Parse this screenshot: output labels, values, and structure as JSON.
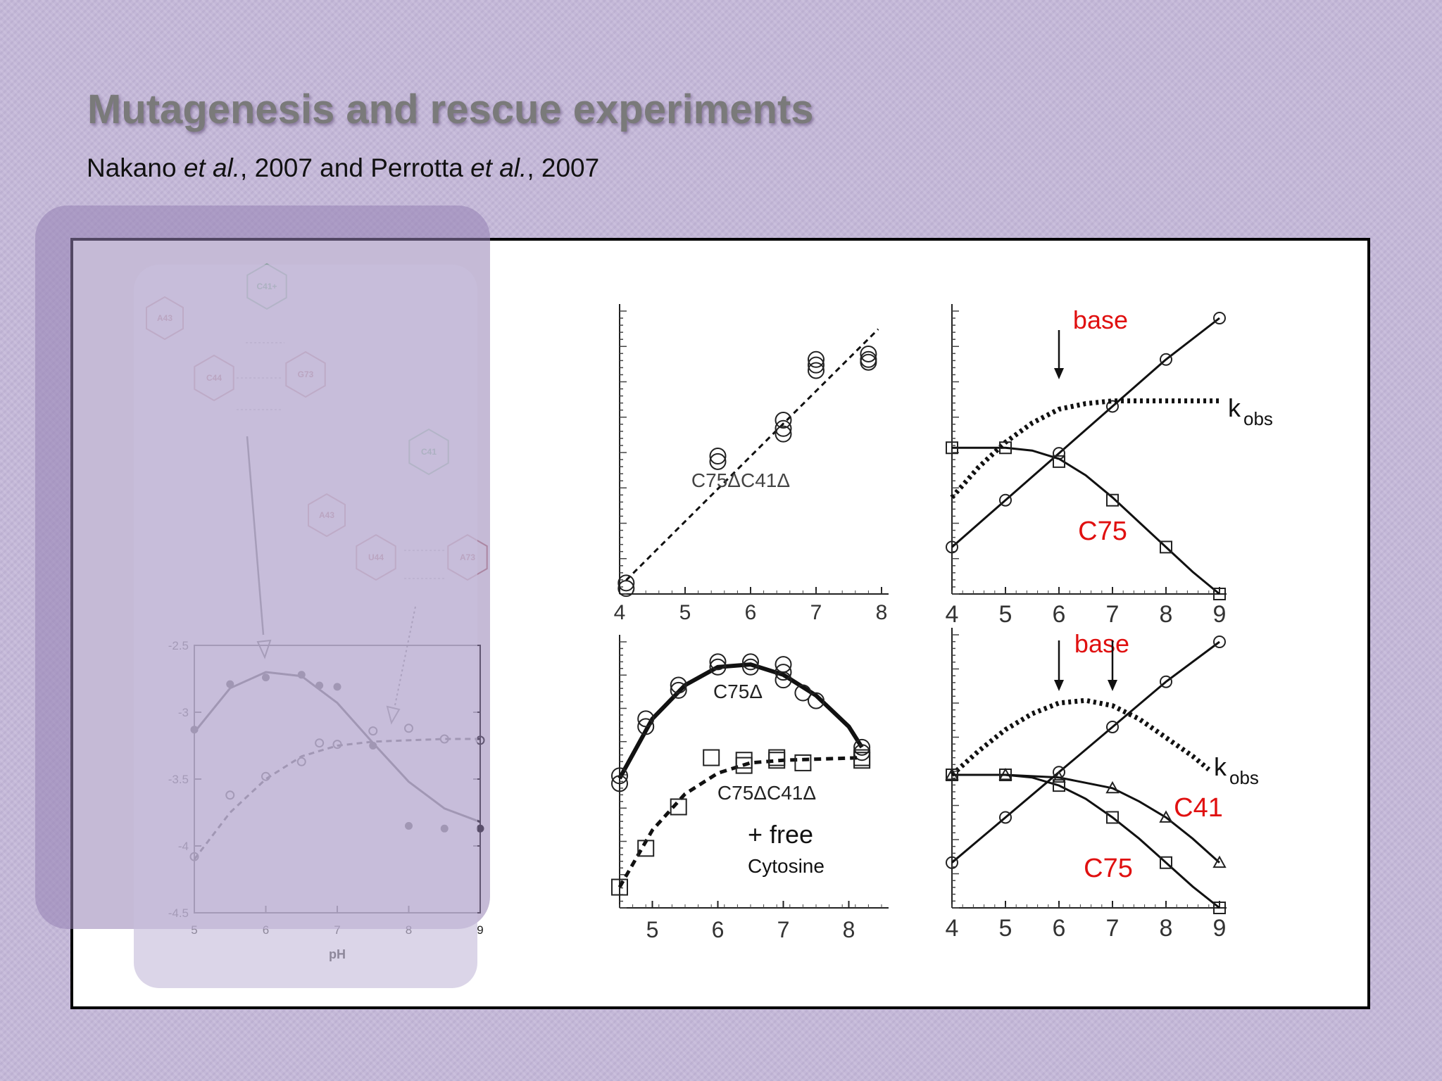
{
  "slide": {
    "title": "Mutagenesis and rescue experiments",
    "citation": {
      "author1": "Nakano",
      "etal": "et al.",
      "year1": ", 2007 and Perrotta",
      "year2": ", 2007"
    }
  },
  "structures": {
    "top": [
      "C41+",
      "A43",
      "C44",
      "G73"
    ],
    "bottom": [
      "C41",
      "A43",
      "U44",
      "A73"
    ]
  },
  "colors": {
    "red_label": "#e01010",
    "black": "#000000",
    "gray_axis": "#666666"
  },
  "chart_data": [
    {
      "id": "panel_left_ph_profile",
      "type": "scatter",
      "xlabel": "pH",
      "x_ticks": [
        "5",
        "6",
        "7",
        "8",
        "9"
      ],
      "y_ticks": [
        "-2.5",
        "-3",
        "-3.5",
        "-4",
        "-4.5"
      ],
      "xlim": [
        5,
        9
      ],
      "ylim": [
        -4.5,
        -2.5
      ],
      "series": [
        {
          "marker": "filled-circle",
          "fit": "solid",
          "points": [
            [
              5,
              -3.13
            ],
            [
              5.5,
              -2.79
            ],
            [
              6,
              -2.74
            ],
            [
              6.5,
              -2.72
            ],
            [
              6.75,
              -2.8
            ],
            [
              7,
              -2.81
            ],
            [
              7.5,
              -3.25
            ],
            [
              8,
              -3.85
            ],
            [
              8.5,
              -3.87
            ],
            [
              9,
              -3.87
            ]
          ],
          "curve": [
            [
              5,
              -3.15
            ],
            [
              5.5,
              -2.82
            ],
            [
              6,
              -2.7
            ],
            [
              6.5,
              -2.73
            ],
            [
              7,
              -2.93
            ],
            [
              7.5,
              -3.23
            ],
            [
              8,
              -3.52
            ],
            [
              8.5,
              -3.72
            ],
            [
              9,
              -3.82
            ]
          ]
        },
        {
          "marker": "open-circle",
          "fit": "dashed",
          "points": [
            [
              5,
              -4.08
            ],
            [
              5.5,
              -3.62
            ],
            [
              6,
              -3.48
            ],
            [
              6.5,
              -3.37
            ],
            [
              6.75,
              -3.23
            ],
            [
              7,
              -3.24
            ],
            [
              7.5,
              -3.14
            ],
            [
              8,
              -3.12
            ],
            [
              8.5,
              -3.2
            ],
            [
              9,
              -3.21
            ]
          ],
          "curve": [
            [
              5,
              -4.1
            ],
            [
              5.5,
              -3.75
            ],
            [
              6,
              -3.5
            ],
            [
              6.5,
              -3.33
            ],
            [
              7,
              -3.25
            ],
            [
              7.5,
              -3.22
            ],
            [
              8,
              -3.21
            ],
            [
              8.5,
              -3.2
            ],
            [
              9,
              -3.2
            ]
          ]
        }
      ]
    },
    {
      "id": "panel_top_middle",
      "type": "scatter",
      "x_ticks": [
        "4",
        "5",
        "6",
        "7",
        "8"
      ],
      "xlim": [
        4,
        8
      ],
      "ylim": [
        0,
        1
      ],
      "annotations": [
        "C75ΔC41Δ"
      ],
      "series": [
        {
          "marker": "open-circle",
          "fit": "dashed",
          "points": [
            [
              4.1,
              0.04
            ],
            [
              4.1,
              0.02
            ],
            [
              5.5,
              0.5
            ],
            [
              5.5,
              0.48
            ],
            [
              6.5,
              0.63
            ],
            [
              6.5,
              0.6
            ],
            [
              6.5,
              0.58
            ],
            [
              7,
              0.85
            ],
            [
              7,
              0.83
            ],
            [
              7,
              0.81
            ],
            [
              7.8,
              0.87
            ],
            [
              7.8,
              0.85
            ],
            [
              7.8,
              0.84
            ]
          ],
          "curve": [
            [
              4.1,
              0.05
            ],
            [
              7.95,
              0.96
            ]
          ]
        }
      ]
    },
    {
      "id": "panel_top_right",
      "type": "line",
      "x_ticks": [
        "4",
        "5",
        "6",
        "7",
        "8",
        "9"
      ],
      "xlim": [
        4,
        9
      ],
      "ylim": [
        0,
        1
      ],
      "labels": {
        "base": "base",
        "kobs_main": "k",
        "kobs_sub": "obs",
        "c75": "C75"
      },
      "arrows_at_x": [
        6
      ],
      "series": [
        {
          "name": "base",
          "marker": "open-circle",
          "fit": "solid",
          "points": [
            [
              4,
              0.17
            ],
            [
              5,
              0.34
            ],
            [
              6,
              0.51
            ],
            [
              7,
              0.68
            ],
            [
              8,
              0.85
            ],
            [
              9,
              1.0
            ]
          ]
        },
        {
          "name": "kobs",
          "marker": "none",
          "fit": "dotted-bold",
          "curve": [
            [
              4,
              0.35
            ],
            [
              4.5,
              0.46
            ],
            [
              5,
              0.55
            ],
            [
              5.5,
              0.62
            ],
            [
              6,
              0.67
            ],
            [
              6.5,
              0.69
            ],
            [
              7,
              0.7
            ],
            [
              8,
              0.7
            ],
            [
              9,
              0.7
            ]
          ]
        },
        {
          "name": "C75",
          "marker": "open-square",
          "fit": "solid",
          "points": [
            [
              4,
              0.53
            ],
            [
              5,
              0.53
            ],
            [
              6,
              0.48
            ],
            [
              7,
              0.34
            ],
            [
              8,
              0.17
            ],
            [
              9,
              0.0
            ]
          ],
          "curve": [
            [
              4,
              0.53
            ],
            [
              5,
              0.53
            ],
            [
              5.5,
              0.52
            ],
            [
              6,
              0.49
            ],
            [
              6.5,
              0.43
            ],
            [
              7,
              0.35
            ],
            [
              7.5,
              0.26
            ],
            [
              8,
              0.17
            ],
            [
              8.5,
              0.08
            ],
            [
              9,
              0.0
            ]
          ]
        }
      ]
    },
    {
      "id": "panel_bottom_middle",
      "type": "scatter",
      "x_ticks": [
        "5",
        "6",
        "7",
        "8"
      ],
      "xlim": [
        4.5,
        8.5
      ],
      "ylim": [
        0,
        1
      ],
      "labels": {
        "c75d": "C75Δ",
        "c75dc41d": "C75ΔC41Δ",
        "free": "+ free",
        "cytosine": "Cytosine"
      },
      "series": [
        {
          "marker": "open-circle",
          "fit": "solid-bold",
          "points": [
            [
              4.5,
              0.51
            ],
            [
              4.5,
              0.48
            ],
            [
              4.9,
              0.73
            ],
            [
              4.9,
              0.7
            ],
            [
              5.4,
              0.86
            ],
            [
              5.4,
              0.84
            ],
            [
              6,
              0.95
            ],
            [
              6,
              0.93
            ],
            [
              6.5,
              0.95
            ],
            [
              6.5,
              0.93
            ],
            [
              7,
              0.94
            ],
            [
              7,
              0.91
            ],
            [
              7,
              0.88
            ],
            [
              7.3,
              0.83
            ],
            [
              7.5,
              0.8
            ],
            [
              8.2,
              0.62
            ],
            [
              8.2,
              0.6
            ]
          ],
          "curve": [
            [
              4.5,
              0.5
            ],
            [
              5,
              0.73
            ],
            [
              5.5,
              0.86
            ],
            [
              6,
              0.93
            ],
            [
              6.5,
              0.94
            ],
            [
              7,
              0.9
            ],
            [
              7.5,
              0.82
            ],
            [
              8,
              0.7
            ],
            [
              8.2,
              0.62
            ]
          ]
        },
        {
          "marker": "open-square",
          "fit": "dashed-bold",
          "points": [
            [
              4.5,
              0.08
            ],
            [
              4.9,
              0.23
            ],
            [
              5.4,
              0.39
            ],
            [
              5.9,
              0.58
            ],
            [
              6.4,
              0.57
            ],
            [
              6.4,
              0.55
            ],
            [
              6.9,
              0.58
            ],
            [
              6.9,
              0.57
            ],
            [
              7.3,
              0.56
            ],
            [
              8.2,
              0.58
            ],
            [
              8.2,
              0.57
            ]
          ],
          "curve": [
            [
              4.5,
              0.08
            ],
            [
              5,
              0.3
            ],
            [
              5.5,
              0.44
            ],
            [
              6,
              0.52
            ],
            [
              6.5,
              0.56
            ],
            [
              7,
              0.57
            ],
            [
              8.2,
              0.58
            ]
          ]
        }
      ]
    },
    {
      "id": "panel_bottom_right",
      "type": "line",
      "x_ticks": [
        "4",
        "5",
        "6",
        "7",
        "8",
        "9"
      ],
      "xlim": [
        4,
        9
      ],
      "ylim": [
        0,
        1
      ],
      "labels": {
        "base": "base",
        "kobs_main": "k",
        "kobs_sub": "obs",
        "c41": "C41",
        "c75": "C75"
      },
      "arrows_at_x": [
        6,
        7
      ],
      "series": [
        {
          "name": "base",
          "marker": "open-circle",
          "fit": "solid",
          "points": [
            [
              4,
              0.17
            ],
            [
              5,
              0.34
            ],
            [
              6,
              0.51
            ],
            [
              7,
              0.68
            ],
            [
              8,
              0.85
            ],
            [
              9,
              1.0
            ]
          ]
        },
        {
          "name": "kobs",
          "marker": "none",
          "fit": "dotted-bold",
          "curve": [
            [
              4,
              0.5
            ],
            [
              4.5,
              0.59
            ],
            [
              5,
              0.67
            ],
            [
              5.5,
              0.73
            ],
            [
              6,
              0.77
            ],
            [
              6.5,
              0.78
            ],
            [
              7,
              0.76
            ],
            [
              7.5,
              0.71
            ],
            [
              8,
              0.64
            ],
            [
              8.5,
              0.57
            ],
            [
              8.8,
              0.52
            ]
          ]
        },
        {
          "name": "C41",
          "marker": "open-triangle",
          "fit": "solid",
          "points": [
            [
              4,
              0.5
            ],
            [
              5,
              0.5
            ],
            [
              6,
              0.49
            ],
            [
              7,
              0.45
            ],
            [
              8,
              0.34
            ],
            [
              9,
              0.17
            ]
          ],
          "curve": [
            [
              4,
              0.5
            ],
            [
              5,
              0.5
            ],
            [
              6,
              0.49
            ],
            [
              6.5,
              0.47
            ],
            [
              7,
              0.45
            ],
            [
              7.5,
              0.4
            ],
            [
              8,
              0.34
            ],
            [
              8.5,
              0.26
            ],
            [
              9,
              0.17
            ]
          ]
        },
        {
          "name": "C75",
          "marker": "open-square",
          "fit": "solid",
          "points": [
            [
              4,
              0.5
            ],
            [
              5,
              0.5
            ],
            [
              6,
              0.46
            ],
            [
              7,
              0.34
            ],
            [
              8,
              0.17
            ],
            [
              9,
              0.0
            ]
          ],
          "curve": [
            [
              4,
              0.5
            ],
            [
              5,
              0.5
            ],
            [
              5.5,
              0.49
            ],
            [
              6,
              0.46
            ],
            [
              6.5,
              0.41
            ],
            [
              7,
              0.34
            ],
            [
              7.5,
              0.26
            ],
            [
              8,
              0.17
            ],
            [
              8.5,
              0.08
            ],
            [
              9,
              0.0
            ]
          ]
        }
      ]
    }
  ]
}
